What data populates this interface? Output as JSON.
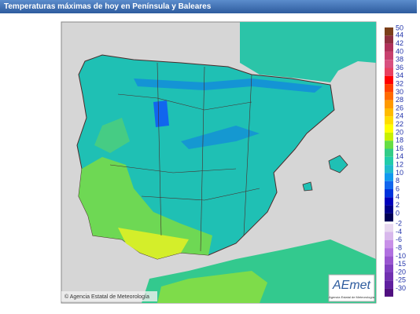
{
  "header": {
    "title": "Temperaturas máximas de hoy en Península y Baleares"
  },
  "map": {
    "credit": "© Agencia Estatal de Meteorología",
    "logo": "AEmet",
    "logo_caption": "Agencia Estatal de Meteorología"
  },
  "legend": {
    "items": [
      {
        "label": 50,
        "color": "#7b3f1a"
      },
      {
        "label": 44,
        "color": "#8f2f3f"
      },
      {
        "label": 42,
        "color": "#b0305a"
      },
      {
        "label": 40,
        "color": "#c8406e"
      },
      {
        "label": 38,
        "color": "#d85080"
      },
      {
        "label": 36,
        "color": "#e84060"
      },
      {
        "label": 34,
        "color": "#ff0000"
      },
      {
        "label": 32,
        "color": "#ff4000"
      },
      {
        "label": 30,
        "color": "#ff6a00"
      },
      {
        "label": 28,
        "color": "#ff9900"
      },
      {
        "label": 26,
        "color": "#ffbb00"
      },
      {
        "label": 24,
        "color": "#ffdd00"
      },
      {
        "label": 22,
        "color": "#ffff00"
      },
      {
        "label": 20,
        "color": "#c8f000"
      },
      {
        "label": 18,
        "color": "#66dd44"
      },
      {
        "label": 16,
        "color": "#33cc88"
      },
      {
        "label": 14,
        "color": "#22ccaa"
      },
      {
        "label": 12,
        "color": "#22bbcc"
      },
      {
        "label": 10,
        "color": "#1199ee"
      },
      {
        "label": 8,
        "color": "#1166ee"
      },
      {
        "label": 6,
        "color": "#0033dd"
      },
      {
        "label": 4,
        "color": "#0000bb"
      },
      {
        "label": 2,
        "color": "#000088"
      },
      {
        "label": 0,
        "color": "#000055"
      },
      {
        "label": -2,
        "color": "#e8d8f0"
      },
      {
        "label": -4,
        "color": "#d8b8ec"
      },
      {
        "label": -6,
        "color": "#c890e8"
      },
      {
        "label": -8,
        "color": "#b070e0"
      },
      {
        "label": -10,
        "color": "#9955d0"
      },
      {
        "label": -15,
        "color": "#8040c0"
      },
      {
        "label": -20,
        "color": "#7030b0"
      },
      {
        "label": -25,
        "color": "#6020a0"
      },
      {
        "label": -30,
        "color": "#501080"
      }
    ]
  }
}
